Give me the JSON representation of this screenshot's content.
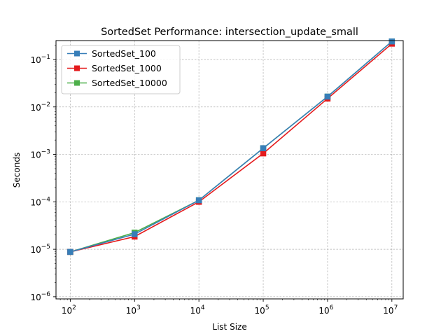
{
  "chart_data": {
    "type": "line",
    "title": "SortedSet Performance: intersection_update_small",
    "xlabel": "List Size",
    "ylabel": "Seconds",
    "xscale": "log",
    "yscale": "log",
    "xlim": [
      60,
      15000000
    ],
    "ylim": [
      9e-07,
      0.25
    ],
    "x_ticks": [
      {
        "value": 100,
        "base": "10",
        "exp": "2"
      },
      {
        "value": 1000,
        "base": "10",
        "exp": "3"
      },
      {
        "value": 10000,
        "base": "10",
        "exp": "4"
      },
      {
        "value": 100000,
        "base": "10",
        "exp": "5"
      },
      {
        "value": 1000000,
        "base": "10",
        "exp": "6"
      },
      {
        "value": 10000000,
        "base": "10",
        "exp": "7"
      }
    ],
    "y_ticks": [
      {
        "value": 1e-06,
        "base": "10",
        "exp": "−6"
      },
      {
        "value": 1e-05,
        "base": "10",
        "exp": "−5"
      },
      {
        "value": 0.0001,
        "base": "10",
        "exp": "−4"
      },
      {
        "value": 0.001,
        "base": "10",
        "exp": "−3"
      },
      {
        "value": 0.01,
        "base": "10",
        "exp": "−2"
      },
      {
        "value": 0.1,
        "base": "10",
        "exp": "−1"
      }
    ],
    "grid": true,
    "legend_position": "top-left",
    "x": [
      100,
      1000,
      10000,
      100000,
      1000000,
      10000000
    ],
    "series": [
      {
        "name": "SortedSet_10000",
        "color": "#4daf4a",
        "values": [
          8.8e-06,
          2.25e-05,
          0.000108,
          0.00135,
          0.0165,
          0.24
        ]
      },
      {
        "name": "SortedSet_1000",
        "color": "#e41a1c",
        "values": [
          8.8e-06,
          1.85e-05,
          0.0001,
          0.00105,
          0.015,
          0.215
        ]
      },
      {
        "name": "SortedSet_100",
        "color": "#377eb8",
        "values": [
          8.8e-06,
          2.08e-05,
          0.000108,
          0.00135,
          0.0165,
          0.24
        ]
      }
    ],
    "legend_order": [
      "SortedSet_100",
      "SortedSet_1000",
      "SortedSet_10000"
    ]
  }
}
